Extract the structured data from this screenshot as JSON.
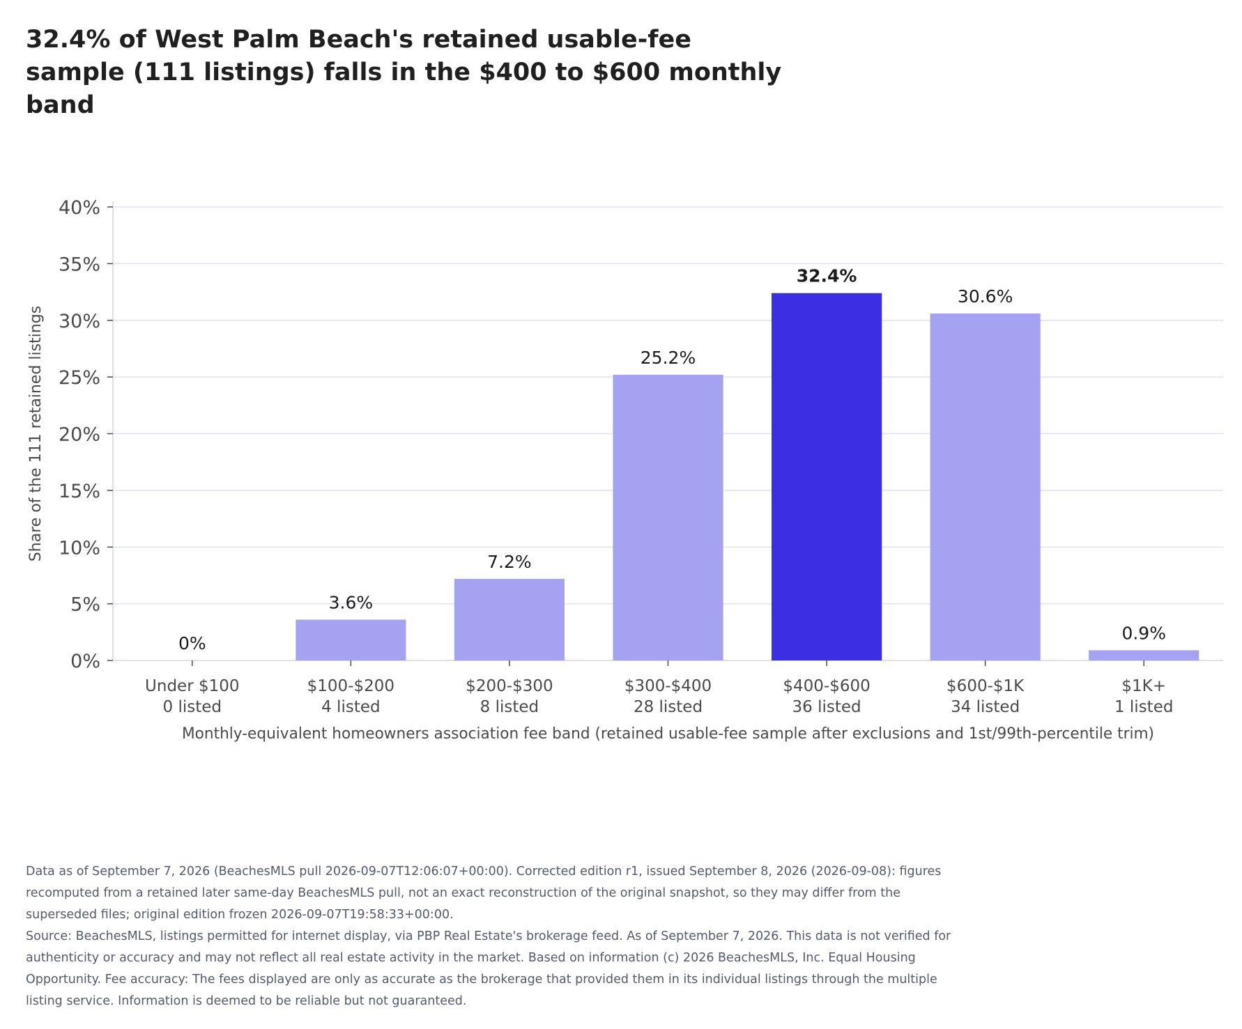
{
  "chart_data": {
    "type": "bar",
    "title": "32.4% of West Palm Beach's retained usable-fee sample (111 listings) falls in the $400 to $600 monthly band",
    "ylabel": "Share of the 111 retained listings",
    "xlabel": "Monthly-equivalent homeowners association fee band (retained usable-fee sample after exclusions and 1st/99th-percentile trim)",
    "ylim": [
      0,
      40
    ],
    "yticks": [
      0,
      5,
      10,
      15,
      20,
      25,
      30,
      35,
      40
    ],
    "ytick_labels": [
      "0%",
      "5%",
      "10%",
      "15%",
      "20%",
      "25%",
      "30%",
      "35%",
      "40%"
    ],
    "grid": true,
    "categories": [
      "Under $100",
      "$100-$200",
      "$200-$300",
      "$300-$400",
      "$400-$600",
      "$600-$1K",
      "$1K+"
    ],
    "counts": [
      "0 listed",
      "4 listed",
      "8 listed",
      "28 listed",
      "36 listed",
      "34 listed",
      "1 listed"
    ],
    "values": [
      0,
      3.6,
      7.2,
      25.2,
      32.4,
      30.6,
      0.9
    ],
    "value_labels": [
      "0%",
      "3.6%",
      "7.2%",
      "25.2%",
      "32.4%",
      "30.6%",
      "0.9%"
    ],
    "highlight_index": 4,
    "colors": {
      "bar": "#a6a2f2",
      "highlight": "#3c2fe3",
      "grid": "#e2e1f0",
      "axis": "#d6d5e6",
      "tick_text": "#4a4a4a",
      "label_text": "#1a1a1a"
    }
  },
  "notes": [
    "Data as of September 7, 2026 (BeachesMLS pull 2026-09-07T12:06:07+00:00). Corrected edition r1, issued September 8, 2026 (2026-09-08): figures recomputed from a retained later same-day BeachesMLS pull, not an exact reconstruction of the original snapshot, so they may differ from the superseded files; original edition frozen 2026-09-07T19:58:33+00:00.",
    "Source: BeachesMLS, listings permitted for internet display, via PBP Real Estate's brokerage feed. As of September 7, 2026. This data is not verified for authenticity or accuracy and may not reflect all real estate activity in the market. Based on information (c) 2026 BeachesMLS, Inc. Equal Housing Opportunity. Fee accuracy: The fees displayed are only as accurate as the brokerage that provided them in its individual listings through the multiple listing service. Information is deemed to be reliable but not guaranteed."
  ]
}
